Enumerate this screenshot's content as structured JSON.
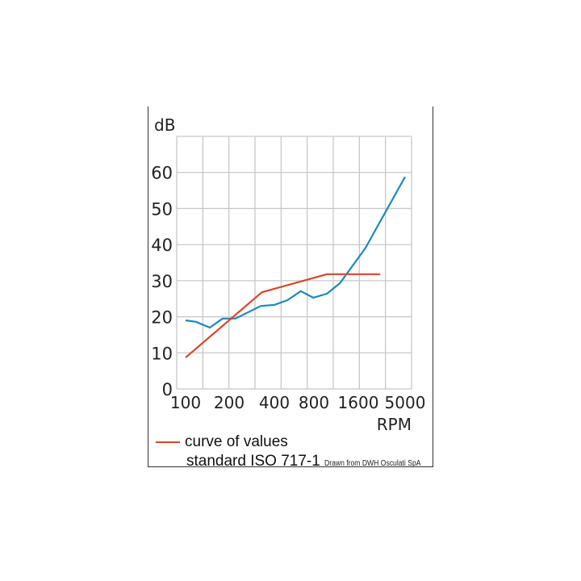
{
  "chart_data": {
    "type": "line",
    "title": "",
    "ylabel": "dB",
    "xlabel": "RPM",
    "x_scale": "log",
    "x_ticks": [
      100,
      200,
      400,
      800,
      1600,
      5000
    ],
    "x_tick_labels": [
      "100",
      "200",
      "400",
      "800",
      "1600",
      "5000"
    ],
    "y_ticks": [
      0,
      10,
      20,
      30,
      40,
      50,
      60
    ],
    "y_tick_labels": [
      "0",
      "10",
      "20",
      "30",
      "40",
      "50",
      "60"
    ],
    "ylim": [
      0,
      70
    ],
    "grid": true,
    "legend_placement": "bottom-left",
    "series": [
      {
        "color": "#1a8ab8",
        "x": [
          100,
          118,
          147,
          180,
          220,
          325,
          400,
          503,
          636,
          790,
          980,
          1200,
          1900,
          5000
        ],
        "y": [
          19.0,
          18.6,
          17.0,
          19.5,
          19.5,
          23.0,
          23.3,
          24.6,
          27.1,
          25.3,
          26.4,
          29.3,
          39.0,
          58.8
        ]
      },
      {
        "name": "curve of values standard ISO 717-1",
        "color": "#d9452b",
        "x": [
          100,
          330,
          980,
          2730
        ],
        "y": [
          8.7,
          26.8,
          31.8,
          31.8
        ]
      }
    ]
  },
  "legend": {
    "line1": "curve of values",
    "line2": "standard ISO 717-1"
  },
  "credit": "Drawn from DWH Osculati SpA"
}
